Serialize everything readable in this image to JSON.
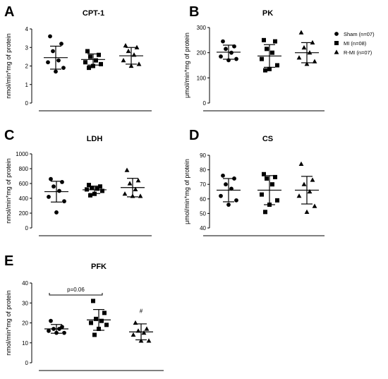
{
  "legend": [
    {
      "name": "Sham (n=07)",
      "marker": "circle"
    },
    {
      "name": "MI (n=08)",
      "marker": "square"
    },
    {
      "name": "R-MI (n=07)",
      "marker": "triangle"
    }
  ],
  "chart_data": [
    {
      "panel": "A",
      "type": "scatter",
      "title": "CPT-1",
      "ylabel": "nmol/min*mg of protein",
      "ylim": [
        0,
        4
      ],
      "yticks": [
        0,
        1,
        2,
        3,
        4
      ],
      "series": [
        {
          "name": "Sham (n=07)",
          "marker": "circle",
          "values": [
            3.6,
            3.2,
            2.8,
            2.3,
            2.2,
            1.9,
            1.7
          ],
          "mean": 2.45,
          "sd": 0.62
        },
        {
          "name": "MI (n=08)",
          "marker": "square",
          "values": [
            2.8,
            2.6,
            2.5,
            2.3,
            2.2,
            2.1,
            2.0,
            1.9
          ],
          "mean": 2.35,
          "sd": 0.3
        },
        {
          "name": "R-MI (n=07)",
          "marker": "triangle",
          "values": [
            3.1,
            3.0,
            2.8,
            2.6,
            2.3,
            2.1,
            2.0
          ],
          "mean": 2.55,
          "sd": 0.45
        }
      ]
    },
    {
      "panel": "B",
      "type": "scatter",
      "title": "PK",
      "ylabel": "μmol/min*mg of protein",
      "ylim": [
        0,
        300
      ],
      "yticks": [
        0,
        100,
        200,
        300
      ],
      "series": [
        {
          "name": "Sham (n=07)",
          "marker": "circle",
          "values": [
            245,
            225,
            215,
            200,
            185,
            175,
            170
          ],
          "mean": 202,
          "sd": 28
        },
        {
          "name": "MI (n=08)",
          "marker": "square",
          "values": [
            250,
            245,
            215,
            200,
            175,
            150,
            135,
            130
          ],
          "mean": 187,
          "sd": 45
        },
        {
          "name": "R-MI (n=07)",
          "marker": "triangle",
          "values": [
            280,
            240,
            220,
            200,
            180,
            165,
            155
          ],
          "mean": 200,
          "sd": 40
        }
      ]
    },
    {
      "panel": "C",
      "type": "scatter",
      "title": "LDH",
      "ylabel": "nmol/min*mg of protein",
      "ylim": [
        0,
        1000
      ],
      "yticks": [
        0,
        200,
        400,
        600,
        800,
        1000
      ],
      "series": [
        {
          "name": "Sham (n=07)",
          "marker": "circle",
          "values": [
            660,
            620,
            560,
            500,
            420,
            360,
            210
          ],
          "mean": 490,
          "sd": 140
        },
        {
          "name": "MI (n=08)",
          "marker": "square",
          "values": [
            580,
            560,
            540,
            530,
            520,
            500,
            460,
            440
          ],
          "mean": 515,
          "sd": 50
        },
        {
          "name": "R-MI (n=07)",
          "marker": "triangle",
          "values": [
            780,
            640,
            600,
            520,
            460,
            430,
            430
          ],
          "mean": 545,
          "sd": 125
        }
      ]
    },
    {
      "panel": "D",
      "type": "scatter",
      "title": "CS",
      "ylabel": "μmol/min*mg of protein",
      "ylim": [
        40,
        90
      ],
      "yticks": [
        40,
        50,
        60,
        70,
        80,
        90
      ],
      "series": [
        {
          "name": "Sham (n=07)",
          "marker": "circle",
          "values": [
            76,
            74,
            70,
            67,
            62,
            59,
            56
          ],
          "mean": 66,
          "sd": 8
        },
        {
          "name": "MI (n=08)",
          "marker": "square",
          "values": [
            77,
            75,
            74,
            70,
            63,
            59,
            56,
            51
          ],
          "mean": 66,
          "sd": 10
        },
        {
          "name": "R-MI (n=07)",
          "marker": "triangle",
          "values": [
            84,
            73,
            70,
            65,
            62,
            55,
            51
          ],
          "mean": 66,
          "sd": 9.5
        }
      ]
    },
    {
      "panel": "E",
      "type": "scatter",
      "title": "PFK",
      "ylabel": "nmol/min*mg of protein",
      "ylim": [
        0,
        40
      ],
      "yticks": [
        0,
        10,
        20,
        30,
        40
      ],
      "series": [
        {
          "name": "Sham (n=07)",
          "marker": "circle",
          "values": [
            21,
            18,
            17,
            17,
            16,
            15,
            15
          ],
          "mean": 17,
          "sd": 2.2
        },
        {
          "name": "MI (n=08)",
          "marker": "square",
          "values": [
            31,
            25,
            22,
            21,
            20,
            19,
            17,
            14
          ],
          "mean": 21.5,
          "sd": 5.2
        },
        {
          "name": "R-MI (n=07)",
          "marker": "triangle",
          "values": [
            20,
            17,
            16,
            15,
            14,
            11,
            11
          ],
          "mean": 15.5,
          "sd": 4
        }
      ],
      "annotations": [
        {
          "text": "p=0.06",
          "type": "bracket",
          "between": [
            "Sham (n=07)",
            "MI (n=08)"
          ],
          "y": 34
        },
        {
          "text": "#",
          "type": "marker",
          "group": "R-MI (n=07)",
          "y": 25
        }
      ]
    }
  ]
}
